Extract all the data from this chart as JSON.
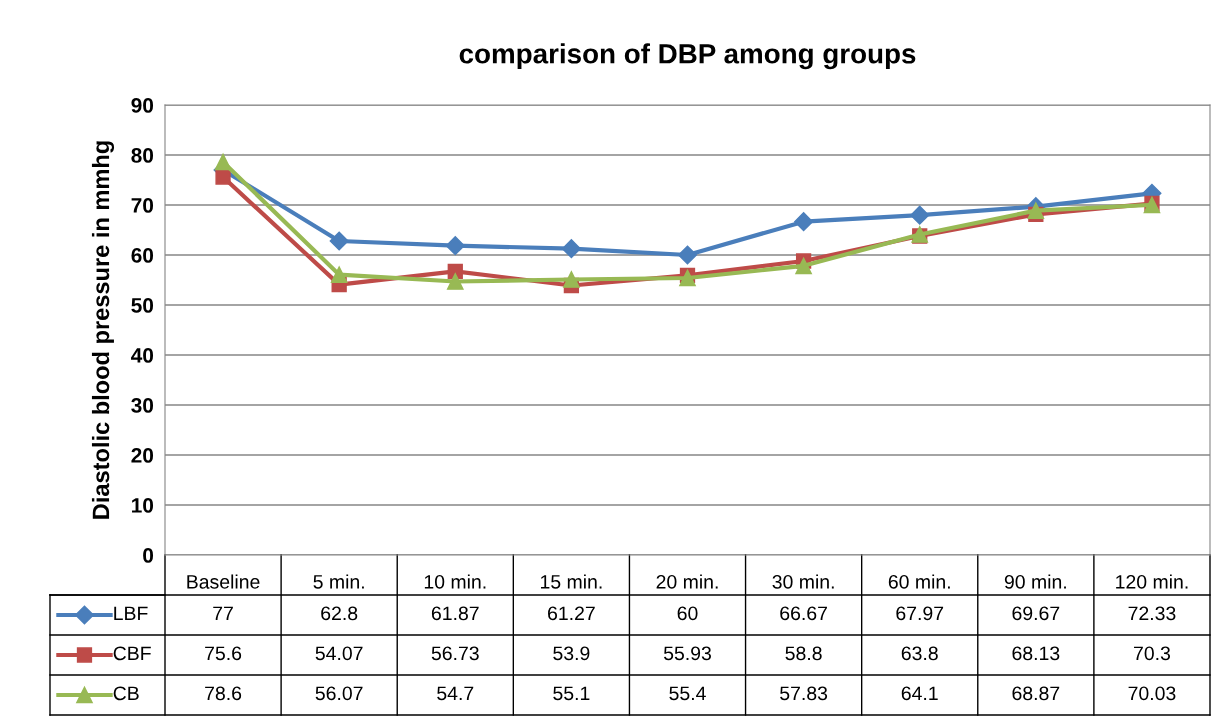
{
  "chart_data": {
    "type": "line",
    "title": "comparison of DBP among groups",
    "ylabel": "Diastolic blood pressure in mmhg",
    "categories": [
      "Baseline",
      "5 min.",
      "10 min.",
      "15 min.",
      "20 min.",
      "30 min.",
      "60 min.",
      "90 min.",
      "120 min."
    ],
    "series": [
      {
        "name": "LBF",
        "color": "#4a7ebb",
        "marker": "diamond",
        "values": [
          77,
          62.8,
          61.87,
          61.27,
          60,
          66.67,
          67.97,
          69.67,
          72.33
        ]
      },
      {
        "name": "CBF",
        "color": "#be4b48",
        "marker": "square",
        "values": [
          75.6,
          54.07,
          56.73,
          53.9,
          55.93,
          58.8,
          63.8,
          68.13,
          70.3
        ]
      },
      {
        "name": "CB",
        "color": "#98b954",
        "marker": "triangle",
        "values": [
          78.6,
          56.07,
          54.7,
          55.1,
          55.4,
          57.83,
          64.1,
          68.87,
          70.03
        ]
      }
    ],
    "ylim": [
      0,
      90
    ],
    "yticks": [
      0,
      10,
      20,
      30,
      40,
      50,
      60,
      70,
      80,
      90
    ],
    "grid": "y",
    "legend": "bottom",
    "data_labels": true,
    "line_style": "solid"
  }
}
